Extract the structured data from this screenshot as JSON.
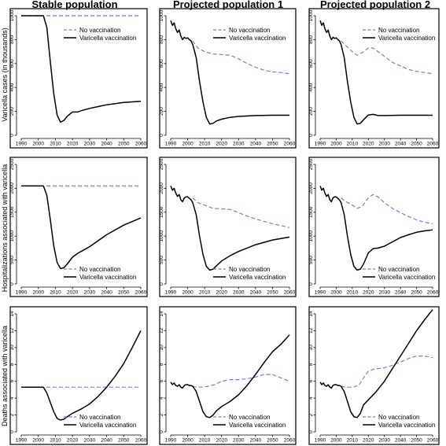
{
  "columns": [
    "Stable population",
    "Projected population 1",
    "Projected population 2"
  ],
  "row_labels": [
    "Varicella cases (in thousands)",
    "Hospitalizations associated with varicella",
    "Deaths associated with varicella"
  ],
  "legend_labels": [
    "No vaccination",
    "Varicella vaccination"
  ],
  "colors": {
    "no_vaccination": "#7777ee",
    "varicella_vaccination": "#000000"
  },
  "chart_data": [
    {
      "type": "line",
      "title": "Stable population",
      "ylabel": "Varicella cases (in thousands)",
      "xlim": [
        1990,
        2060
      ],
      "ylim": [
        0,
        1000
      ],
      "xticks": [
        1990,
        2000,
        2010,
        2020,
        2030,
        2040,
        2050,
        2060
      ],
      "yticks": [
        0,
        200,
        400,
        600,
        800,
        1000
      ],
      "legend": "top-right",
      "series": [
        {
          "name": "No vaccination",
          "style": "dashed",
          "x": [
            1990,
            2060
          ],
          "y": [
            1000,
            1000
          ]
        },
        {
          "name": "Varicella vaccination",
          "style": "solid",
          "x": [
            1990,
            2003,
            2005,
            2007,
            2009,
            2011,
            2013,
            2015,
            2017,
            2020,
            2023,
            2025,
            2030,
            2040,
            2050,
            2060
          ],
          "y": [
            1000,
            1000,
            900,
            620,
            350,
            170,
            110,
            125,
            160,
            195,
            195,
            205,
            225,
            255,
            275,
            285
          ]
        }
      ]
    },
    {
      "type": "line",
      "title": "Projected population 1",
      "ylabel": "",
      "xlim": [
        1990,
        2060
      ],
      "ylim": [
        0,
        1000
      ],
      "xticks": [
        1990,
        2000,
        2010,
        2020,
        2030,
        2040,
        2050,
        2060
      ],
      "yticks": [
        0,
        200,
        400,
        600,
        800,
        1000
      ],
      "legend": "top-right",
      "series": [
        {
          "name": "No vaccination",
          "style": "dashed",
          "x": [
            2003,
            2006,
            2010,
            2015,
            2020,
            2025,
            2030,
            2035,
            2040,
            2045,
            2050,
            2055,
            2060
          ],
          "y": [
            790,
            730,
            700,
            680,
            675,
            670,
            640,
            600,
            570,
            545,
            530,
            525,
            515
          ]
        },
        {
          "name": "Varicella vaccination",
          "style": "solid",
          "x": [
            1990,
            1991,
            1992,
            1993,
            1994,
            1995,
            1996,
            1997,
            1998,
            1999,
            2000,
            2001,
            2002,
            2003,
            2005,
            2007,
            2009,
            2011,
            2013,
            2015,
            2017,
            2020,
            2025,
            2030,
            2040,
            2050,
            2060
          ],
          "y": [
            960,
            920,
            940,
            890,
            860,
            880,
            830,
            800,
            820,
            810,
            815,
            800,
            790,
            760,
            650,
            450,
            280,
            150,
            95,
            100,
            120,
            135,
            150,
            158,
            165,
            168,
            168
          ]
        }
      ]
    },
    {
      "type": "line",
      "title": "Projected population 2",
      "ylabel": "",
      "xlim": [
        1990,
        2060
      ],
      "ylim": [
        0,
        1000
      ],
      "xticks": [
        1990,
        2000,
        2010,
        2020,
        2030,
        2040,
        2050,
        2060
      ],
      "yticks": [
        0,
        200,
        400,
        600,
        800,
        1000
      ],
      "legend": "top-right",
      "series": [
        {
          "name": "No vaccination",
          "style": "dashed",
          "x": [
            2003,
            2006,
            2010,
            2013,
            2016,
            2020,
            2023,
            2026,
            2030,
            2035,
            2040,
            2045,
            2050,
            2055,
            2060
          ],
          "y": [
            790,
            750,
            700,
            670,
            690,
            730,
            730,
            700,
            660,
            610,
            580,
            550,
            535,
            525,
            515
          ]
        },
        {
          "name": "Varicella vaccination",
          "style": "solid",
          "x": [
            1990,
            1991,
            1992,
            1993,
            1994,
            1995,
            1996,
            1997,
            1998,
            1999,
            2000,
            2001,
            2002,
            2003,
            2005,
            2007,
            2009,
            2011,
            2013,
            2015,
            2017,
            2020,
            2023,
            2026,
            2030,
            2040,
            2050,
            2060
          ],
          "y": [
            960,
            920,
            940,
            890,
            860,
            880,
            830,
            800,
            820,
            810,
            815,
            800,
            790,
            760,
            650,
            450,
            280,
            150,
            95,
            100,
            130,
            170,
            175,
            165,
            165,
            168,
            168,
            168
          ]
        }
      ]
    },
    {
      "type": "line",
      "title": "",
      "ylabel": "Hospitalizations associated with varicella",
      "xlim": [
        1990,
        2060
      ],
      "ylim": [
        0,
        2500
      ],
      "xticks": [
        1990,
        2000,
        2010,
        2020,
        2030,
        2040,
        2050,
        2060
      ],
      "yticks": [
        0,
        500,
        1000,
        1500,
        2000,
        2500
      ],
      "legend": "bottom-right",
      "series": [
        {
          "name": "No vaccination",
          "style": "dashed",
          "x": [
            1990,
            2060
          ],
          "y": [
            2050,
            2050
          ]
        },
        {
          "name": "Varicella vaccination",
          "style": "solid",
          "x": [
            1990,
            2003,
            2005,
            2007,
            2009,
            2011,
            2013,
            2015,
            2017,
            2020,
            2023,
            2025,
            2030,
            2040,
            2050,
            2060
          ],
          "y": [
            2050,
            2050,
            1850,
            1350,
            800,
            450,
            320,
            340,
            420,
            560,
            640,
            680,
            780,
            1030,
            1230,
            1380
          ]
        }
      ]
    },
    {
      "type": "line",
      "title": "",
      "ylabel": "",
      "xlim": [
        1990,
        2060
      ],
      "ylim": [
        0,
        2500
      ],
      "xticks": [
        1990,
        2000,
        2010,
        2020,
        2030,
        2040,
        2050,
        2060
      ],
      "yticks": [
        0,
        500,
        1000,
        1500,
        2000,
        2500
      ],
      "legend": "bottom-right",
      "series": [
        {
          "name": "No vaccination",
          "style": "dashed",
          "x": [
            2003,
            2006,
            2010,
            2015,
            2020,
            2025,
            2030,
            2035,
            2040,
            2045,
            2050,
            2055,
            2060
          ],
          "y": [
            1800,
            1700,
            1650,
            1580,
            1570,
            1560,
            1490,
            1420,
            1360,
            1310,
            1260,
            1220,
            1180
          ]
        },
        {
          "name": "Varicella vaccination",
          "style": "solid",
          "x": [
            1990,
            1991,
            1992,
            1993,
            1994,
            1995,
            1996,
            1997,
            1998,
            1999,
            2000,
            2001,
            2002,
            2003,
            2005,
            2007,
            2009,
            2011,
            2013,
            2015,
            2017,
            2020,
            2025,
            2030,
            2040,
            2050,
            2060
          ],
          "y": [
            2050,
            1960,
            2000,
            1900,
            1830,
            1870,
            1760,
            1720,
            1800,
            1820,
            1820,
            1790,
            1760,
            1700,
            1450,
            1000,
            620,
            370,
            290,
            310,
            380,
            480,
            590,
            680,
            820,
            920,
            980
          ]
        }
      ]
    },
    {
      "type": "line",
      "title": "",
      "ylabel": "",
      "xlim": [
        1990,
        2060
      ],
      "ylim": [
        0,
        2500
      ],
      "xticks": [
        1990,
        2000,
        2010,
        2020,
        2030,
        2040,
        2050,
        2060
      ],
      "yticks": [
        0,
        500,
        1000,
        1500,
        2000,
        2500
      ],
      "legend": "bottom-right",
      "series": [
        {
          "name": "No vaccination",
          "style": "dashed",
          "x": [
            2003,
            2006,
            2010,
            2013,
            2016,
            2020,
            2023,
            2026,
            2030,
            2035,
            2040,
            2045,
            2050,
            2055,
            2060
          ],
          "y": [
            1800,
            1720,
            1650,
            1580,
            1620,
            1800,
            1870,
            1820,
            1700,
            1580,
            1490,
            1410,
            1340,
            1290,
            1260
          ]
        },
        {
          "name": "Varicella vaccination",
          "style": "solid",
          "x": [
            1990,
            1991,
            1992,
            1993,
            1994,
            1995,
            1996,
            1997,
            1998,
            1999,
            2000,
            2001,
            2002,
            2003,
            2005,
            2007,
            2009,
            2011,
            2013,
            2015,
            2017,
            2020,
            2023,
            2026,
            2030,
            2035,
            2040,
            2045,
            2050,
            2055,
            2060
          ],
          "y": [
            2050,
            1960,
            2000,
            1900,
            1830,
            1870,
            1760,
            1720,
            1800,
            1820,
            1820,
            1790,
            1760,
            1700,
            1450,
            1000,
            620,
            370,
            290,
            310,
            420,
            650,
            740,
            750,
            790,
            880,
            970,
            1030,
            1080,
            1110,
            1130
          ]
        }
      ]
    },
    {
      "type": "line",
      "title": "",
      "ylabel": "Deaths associated with varicella",
      "xlim": [
        1990,
        2060
      ],
      "ylim": [
        0,
        14
      ],
      "xticks": [
        1990,
        2000,
        2010,
        2020,
        2030,
        2040,
        2050,
        2060
      ],
      "yticks": [
        0,
        2,
        4,
        6,
        8,
        10,
        12,
        14
      ],
      "legend": "bottom-right",
      "series": [
        {
          "name": "No vaccination",
          "style": "dashed",
          "x": [
            1990,
            2060
          ],
          "y": [
            5.3,
            5.3
          ]
        },
        {
          "name": "Varicella vaccination",
          "style": "solid",
          "x": [
            1990,
            2003,
            2005,
            2007,
            2009,
            2011,
            2013,
            2015,
            2017,
            2020,
            2023,
            2025,
            2030,
            2035,
            2040,
            2045,
            2050,
            2055,
            2060
          ],
          "y": [
            5.3,
            5.3,
            4.6,
            3.5,
            2.4,
            1.6,
            1.4,
            1.5,
            1.8,
            2.2,
            2.5,
            2.7,
            3.3,
            4.2,
            5.3,
            6.6,
            8.1,
            10.0,
            12.0
          ]
        }
      ]
    },
    {
      "type": "line",
      "title": "",
      "ylabel": "",
      "xlim": [
        1990,
        2060
      ],
      "ylim": [
        0,
        14
      ],
      "xticks": [
        1990,
        2000,
        2010,
        2020,
        2030,
        2040,
        2050,
        2060
      ],
      "yticks": [
        0,
        2,
        4,
        6,
        8,
        10,
        12,
        14
      ],
      "legend": "bottom-right",
      "series": [
        {
          "name": "No vaccination",
          "style": "dashed",
          "x": [
            2003,
            2005,
            2008,
            2012,
            2016,
            2020,
            2025,
            2030,
            2035,
            2040,
            2045,
            2050,
            2055,
            2060
          ],
          "y": [
            5.4,
            5.3,
            5.3,
            5.4,
            5.6,
            6.0,
            6.2,
            6.2,
            6.3,
            6.5,
            6.8,
            6.8,
            6.4,
            6.0
          ]
        },
        {
          "name": "Varicella vaccination",
          "style": "solid",
          "x": [
            1990,
            1991,
            1992,
            1993,
            1994,
            1995,
            1996,
            1997,
            1998,
            1999,
            2000,
            2001,
            2002,
            2003,
            2005,
            2007,
            2009,
            2011,
            2013,
            2015,
            2017,
            2020,
            2025,
            2030,
            2035,
            2040,
            2045,
            2050,
            2055,
            2060
          ],
          "y": [
            5.9,
            5.6,
            5.8,
            5.5,
            5.4,
            5.6,
            5.3,
            5.2,
            5.5,
            5.6,
            5.6,
            5.5,
            5.5,
            5.4,
            4.8,
            3.6,
            2.4,
            1.8,
            1.7,
            2.0,
            2.5,
            3.0,
            3.6,
            4.4,
            5.5,
            6.8,
            8.2,
            9.5,
            10.4,
            11.5
          ]
        }
      ]
    },
    {
      "type": "line",
      "title": "",
      "ylabel": "",
      "xlim": [
        1990,
        2060
      ],
      "ylim": [
        0,
        14
      ],
      "xticks": [
        1990,
        2000,
        2010,
        2020,
        2030,
        2040,
        2050,
        2060
      ],
      "yticks": [
        0,
        2,
        4,
        6,
        8,
        10,
        12,
        14
      ],
      "legend": "bottom-right",
      "series": [
        {
          "name": "No vaccination",
          "style": "dashed",
          "x": [
            2003,
            2006,
            2010,
            2014,
            2017,
            2020,
            2023,
            2026,
            2030,
            2035,
            2040,
            2045,
            2050,
            2055,
            2060
          ],
          "y": [
            5.4,
            5.3,
            5.3,
            5.5,
            6.4,
            7.2,
            7.4,
            7.5,
            7.6,
            7.9,
            8.3,
            8.7,
            9.0,
            9.0,
            8.8
          ]
        },
        {
          "name": "Varicella vaccination",
          "style": "solid",
          "x": [
            1990,
            1991,
            1992,
            1993,
            1994,
            1995,
            1996,
            1997,
            1998,
            1999,
            2000,
            2001,
            2002,
            2003,
            2005,
            2007,
            2009,
            2011,
            2013,
            2015,
            2017,
            2020,
            2025,
            2030,
            2035,
            2040,
            2045,
            2050,
            2055,
            2060
          ],
          "y": [
            5.9,
            5.6,
            5.8,
            5.5,
            5.4,
            5.6,
            5.3,
            5.2,
            5.5,
            5.6,
            5.6,
            5.5,
            5.5,
            5.4,
            4.8,
            3.6,
            2.4,
            1.8,
            1.7,
            2.2,
            3.2,
            3.8,
            4.8,
            6.0,
            7.5,
            9.0,
            10.5,
            12.0,
            13.3,
            14.5
          ]
        }
      ]
    }
  ]
}
